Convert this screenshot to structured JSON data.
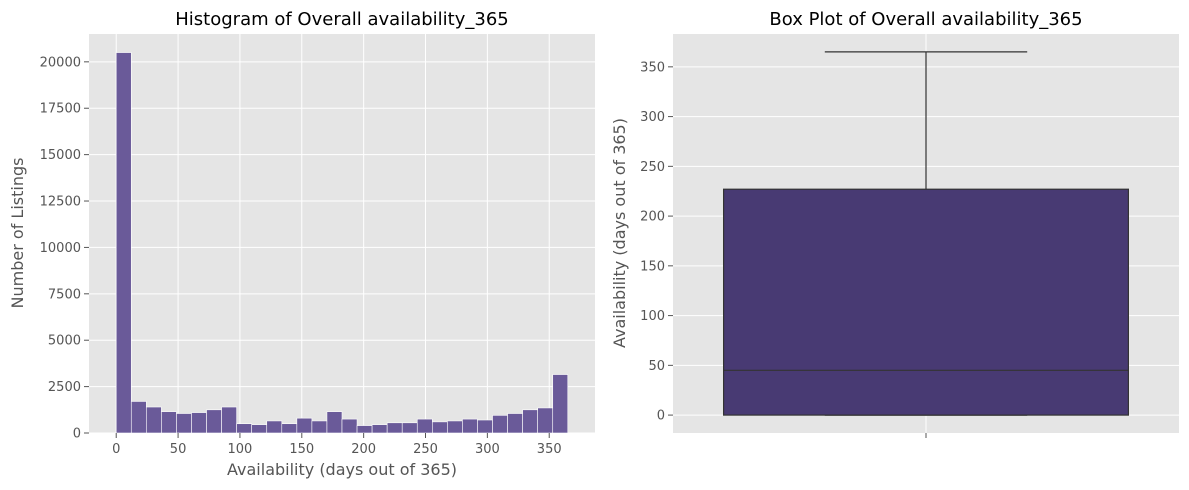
{
  "chart_data": [
    {
      "type": "bar",
      "title": "Histogram of Overall availability_365",
      "xlabel": "Availability (days out of 365)",
      "ylabel": "Number of Listings",
      "xlim": [
        -22,
        387
      ],
      "ylim": [
        0,
        21500
      ],
      "xticks": [
        0,
        50,
        100,
        150,
        200,
        250,
        300,
        350
      ],
      "yticks": [
        0,
        2500,
        5000,
        7500,
        10000,
        12500,
        15000,
        17500,
        20000
      ],
      "bin_width": 12.1667,
      "bin_starts": [
        0,
        12.17,
        24.33,
        36.5,
        48.67,
        60.83,
        73,
        85.17,
        97.33,
        109.5,
        121.67,
        133.83,
        146,
        158.17,
        170.33,
        182.5,
        194.67,
        206.83,
        219,
        231.17,
        243.33,
        255.5,
        267.67,
        279.83,
        292,
        304.17,
        316.33,
        328.5,
        340.67,
        352.83
      ],
      "values": [
        20500,
        1700,
        1400,
        1150,
        1050,
        1100,
        1250,
        1400,
        500,
        450,
        650,
        500,
        800,
        650,
        1150,
        750,
        400,
        450,
        550,
        550,
        750,
        600,
        650,
        750,
        700,
        950,
        1050,
        1250,
        1350,
        3150
      ],
      "bar_color": "#6a5a99",
      "grid": true
    },
    {
      "type": "box",
      "title": "Box Plot of Overall availability_365",
      "xlabel": "",
      "ylabel": "Availability (days out of 365)",
      "ylim": [
        -18,
        383
      ],
      "yticks": [
        0,
        50,
        100,
        150,
        200,
        250,
        300,
        350
      ],
      "min": 0,
      "q1": 0,
      "median": 45,
      "q3": 227,
      "max": 365,
      "box_color": "#483a73",
      "grid": true
    }
  ]
}
